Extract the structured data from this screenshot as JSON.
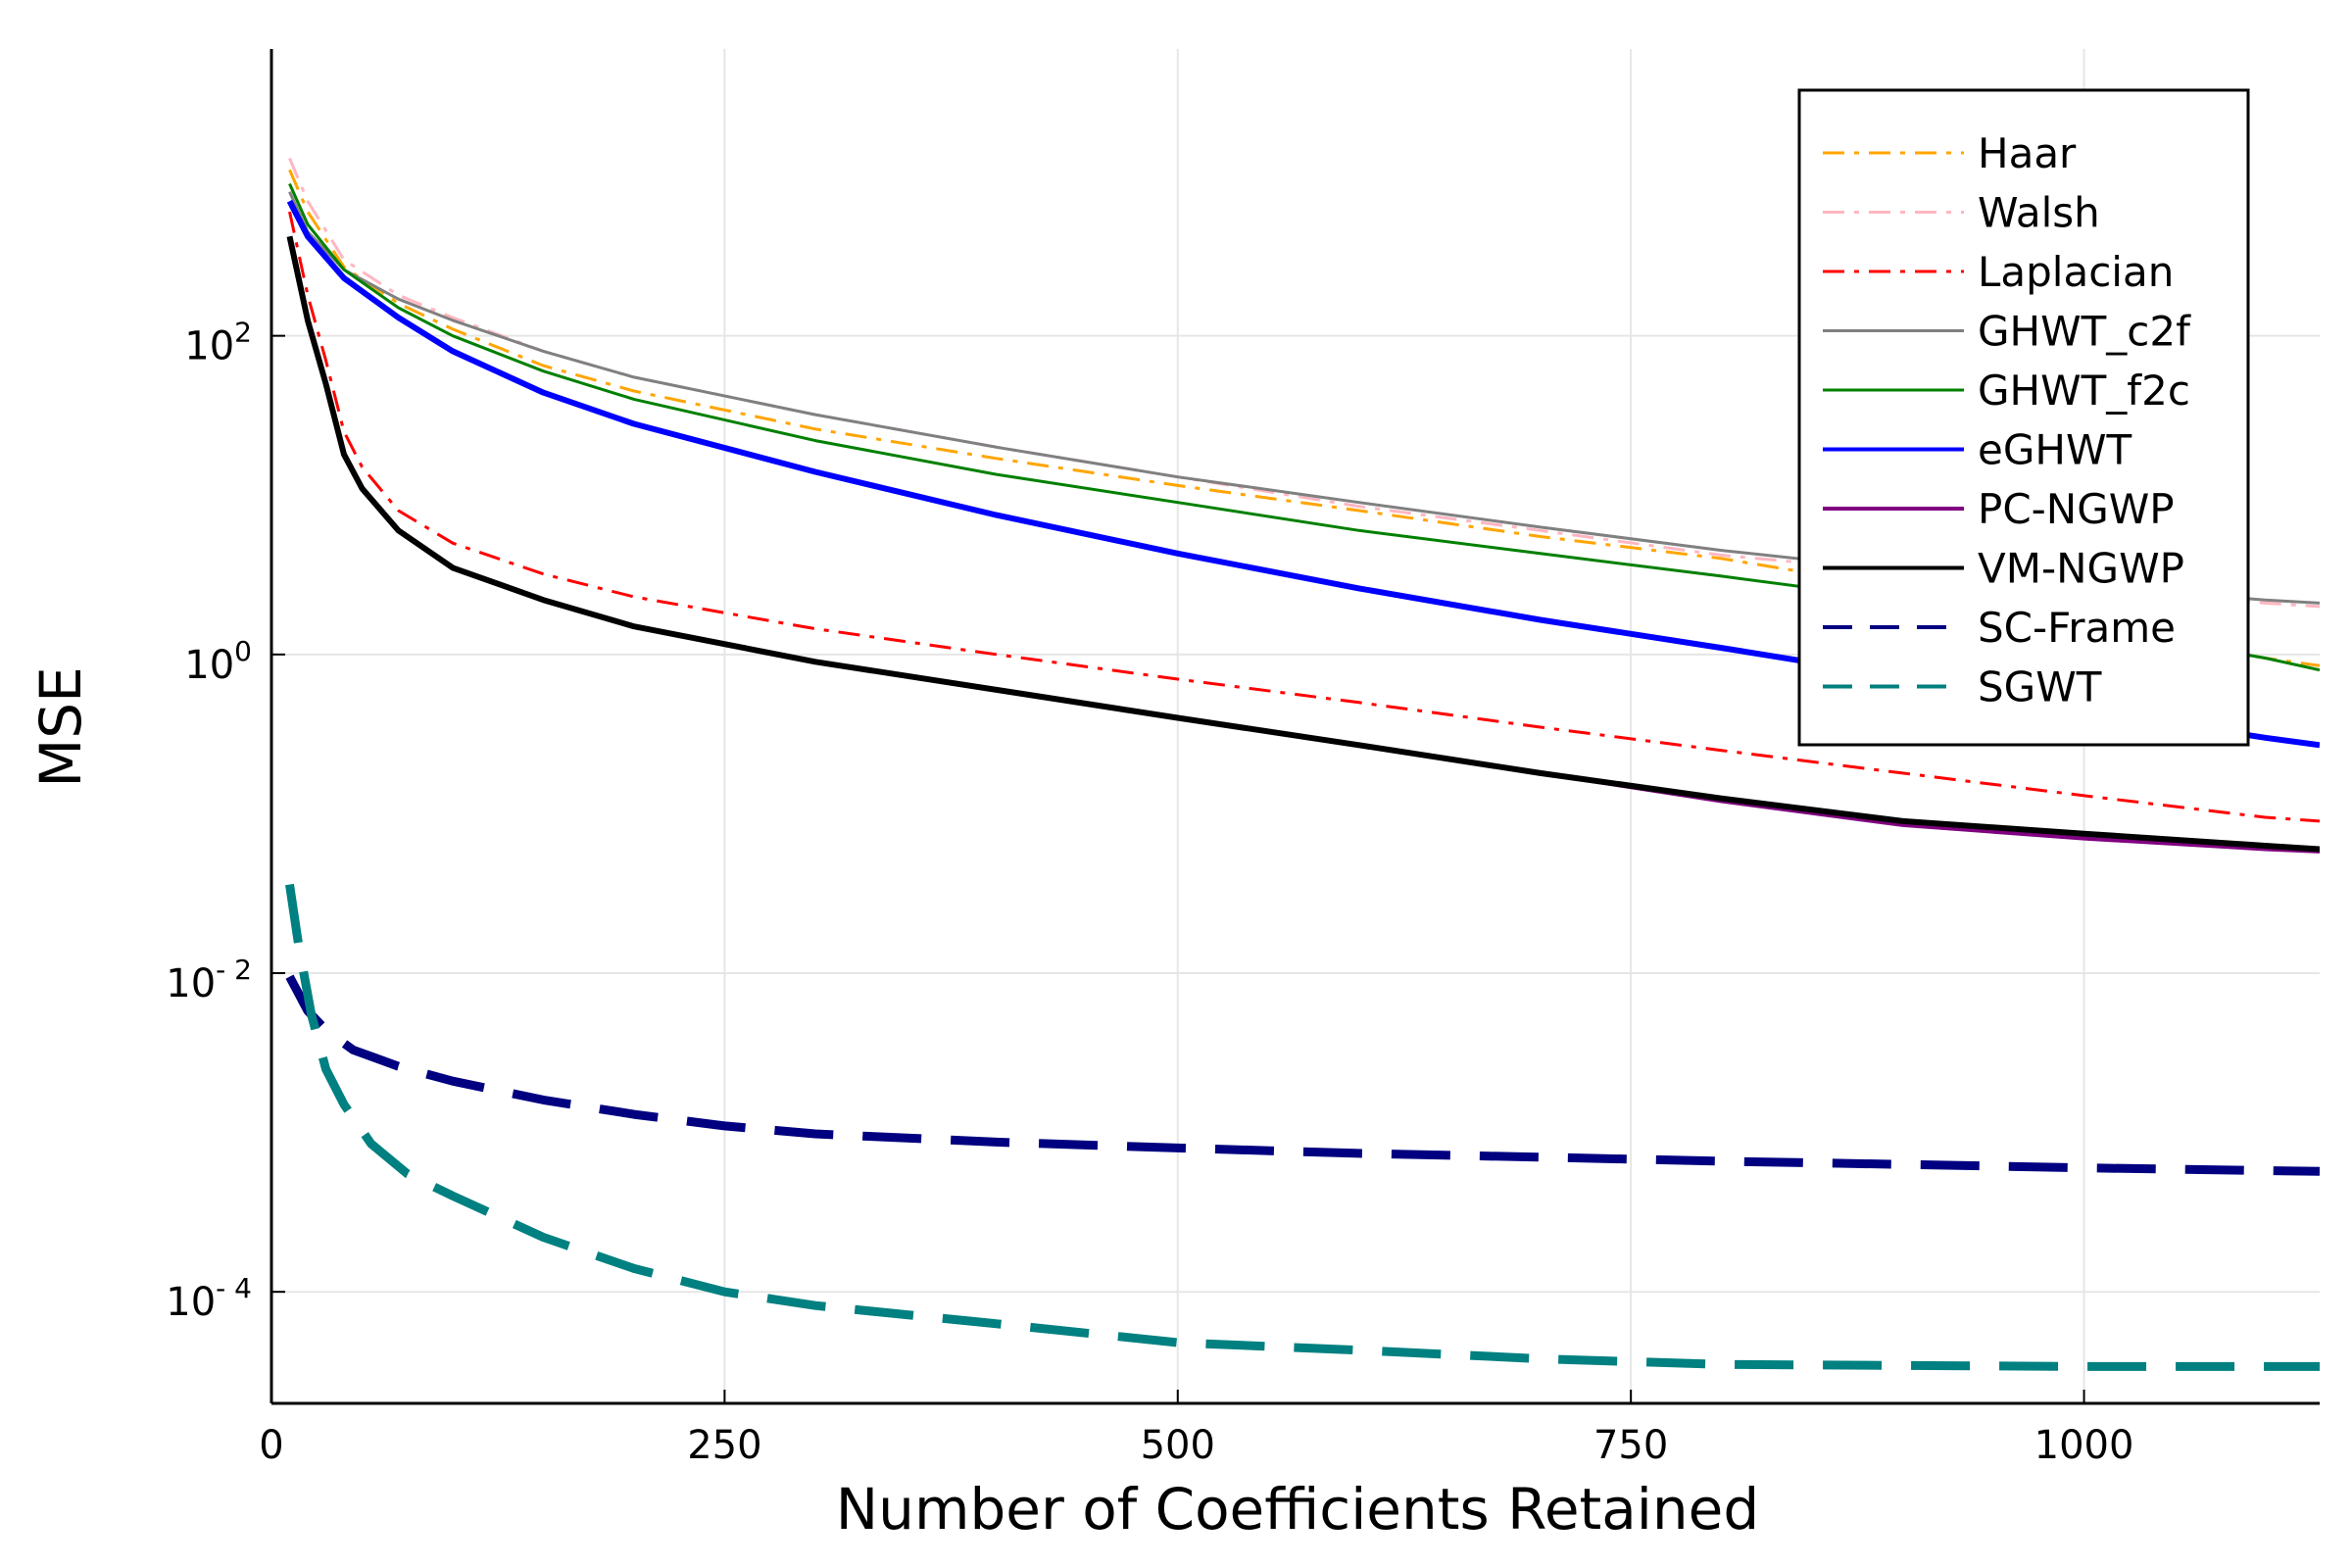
{
  "chart_data": {
    "type": "line",
    "title": "",
    "xlabel": "Number of Coefficients Retained",
    "ylabel": "MSE",
    "xlim": [
      0,
      1130
    ],
    "ylim_log10": [
      -4.7,
      3.8
    ],
    "log_y": true,
    "grid": true,
    "legend_position": "top-right",
    "x_ticks": [
      {
        "value": 0,
        "label": "0"
      },
      {
        "value": 250,
        "label": "250"
      },
      {
        "value": 500,
        "label": "500"
      },
      {
        "value": 750,
        "label": "750"
      },
      {
        "value": 1000,
        "label": "1000"
      }
    ],
    "y_ticks": [
      {
        "exp": 2,
        "base": "10",
        "sup": "2"
      },
      {
        "exp": 0,
        "base": "10",
        "sup": "0"
      },
      {
        "exp": -2,
        "base": "10",
        "sup": "- 2"
      },
      {
        "exp": -4,
        "base": "10",
        "sup": "- 4"
      }
    ],
    "series": [
      {
        "name": "Haar",
        "color": "#ffa500",
        "style": "dashdot",
        "width": 3,
        "points": [
          [
            10,
            1100
          ],
          [
            20,
            600
          ],
          [
            40,
            270
          ],
          [
            70,
            160
          ],
          [
            100,
            110
          ],
          [
            150,
            65
          ],
          [
            200,
            45
          ],
          [
            300,
            26
          ],
          [
            400,
            17
          ],
          [
            500,
            11.5
          ],
          [
            600,
            8
          ],
          [
            700,
            5.5
          ],
          [
            800,
            4
          ],
          [
            900,
            2.6
          ],
          [
            1000,
            1.5
          ],
          [
            1100,
            0.95
          ],
          [
            1130,
            0.85
          ]
        ]
      },
      {
        "name": "Walsh",
        "color": "#ffb6c1",
        "style": "dashdot",
        "width": 3,
        "points": [
          [
            10,
            1300
          ],
          [
            20,
            700
          ],
          [
            40,
            300
          ],
          [
            70,
            180
          ],
          [
            100,
            130
          ],
          [
            150,
            80
          ],
          [
            200,
            55
          ],
          [
            300,
            32
          ],
          [
            400,
            20
          ],
          [
            500,
            13
          ],
          [
            600,
            8.5
          ],
          [
            700,
            6
          ],
          [
            800,
            4.2
          ],
          [
            900,
            3.3
          ],
          [
            1000,
            2.6
          ],
          [
            1100,
            2.1
          ],
          [
            1130,
            2
          ]
        ]
      },
      {
        "name": "Laplacian",
        "color": "#ff0000",
        "style": "dashdot",
        "width": 3,
        "points": [
          [
            10,
            600
          ],
          [
            20,
            180
          ],
          [
            30,
            70
          ],
          [
            40,
            25
          ],
          [
            50,
            15
          ],
          [
            70,
            8
          ],
          [
            100,
            5
          ],
          [
            150,
            3.2
          ],
          [
            200,
            2.3
          ],
          [
            300,
            1.45
          ],
          [
            400,
            1
          ],
          [
            500,
            0.7
          ],
          [
            600,
            0.5
          ],
          [
            700,
            0.35
          ],
          [
            800,
            0.25
          ],
          [
            900,
            0.18
          ],
          [
            1000,
            0.13
          ],
          [
            1100,
            0.095
          ],
          [
            1130,
            0.09
          ]
        ]
      },
      {
        "name": "GHWT_c2f",
        "color": "#808080",
        "style": "solid",
        "width": 3,
        "points": [
          [
            10,
            800
          ],
          [
            20,
            450
          ],
          [
            40,
            260
          ],
          [
            70,
            170
          ],
          [
            100,
            125
          ],
          [
            150,
            80
          ],
          [
            200,
            55
          ],
          [
            300,
            32
          ],
          [
            400,
            20
          ],
          [
            500,
            13
          ],
          [
            600,
            9
          ],
          [
            700,
            6.3
          ],
          [
            800,
            4.5
          ],
          [
            900,
            3.4
          ],
          [
            1000,
            2.7
          ],
          [
            1100,
            2.2
          ],
          [
            1130,
            2.1
          ]
        ]
      },
      {
        "name": "GHWT_f2c",
        "color": "#008000",
        "style": "solid",
        "width": 3,
        "points": [
          [
            10,
            900
          ],
          [
            20,
            500
          ],
          [
            40,
            260
          ],
          [
            70,
            150
          ],
          [
            100,
            100
          ],
          [
            150,
            60
          ],
          [
            200,
            40
          ],
          [
            300,
            22
          ],
          [
            400,
            13.5
          ],
          [
            500,
            9
          ],
          [
            600,
            6
          ],
          [
            700,
            4.3
          ],
          [
            800,
            3.1
          ],
          [
            900,
            2.2
          ],
          [
            1000,
            1.5
          ],
          [
            1100,
            0.95
          ],
          [
            1130,
            0.8
          ]
        ]
      },
      {
        "name": "eGHWT",
        "color": "#0000ff",
        "style": "solid",
        "width": 6,
        "points": [
          [
            10,
            700
          ],
          [
            20,
            420
          ],
          [
            40,
            230
          ],
          [
            70,
            130
          ],
          [
            100,
            80
          ],
          [
            150,
            44
          ],
          [
            200,
            28
          ],
          [
            300,
            14
          ],
          [
            400,
            7.5
          ],
          [
            500,
            4.3
          ],
          [
            600,
            2.6
          ],
          [
            700,
            1.65
          ],
          [
            800,
            1.1
          ],
          [
            900,
            0.72
          ],
          [
            1000,
            0.45
          ],
          [
            1100,
            0.3
          ],
          [
            1130,
            0.27
          ]
        ]
      },
      {
        "name": "PC-NGWP",
        "color": "#800080",
        "style": "solid",
        "width": 4,
        "points": [
          [
            10,
            400
          ],
          [
            20,
            120
          ],
          [
            30,
            50
          ],
          [
            40,
            18
          ],
          [
            50,
            11
          ],
          [
            70,
            6
          ],
          [
            100,
            3.5
          ],
          [
            150,
            2.2
          ],
          [
            200,
            1.5
          ],
          [
            300,
            0.9
          ],
          [
            400,
            0.6
          ],
          [
            500,
            0.4
          ],
          [
            600,
            0.27
          ],
          [
            700,
            0.18
          ],
          [
            800,
            0.12
          ],
          [
            900,
            0.085
          ],
          [
            1000,
            0.07
          ],
          [
            1100,
            0.06
          ],
          [
            1130,
            0.058
          ]
        ]
      },
      {
        "name": "VM-NGWP",
        "color": "#000000",
        "style": "solid",
        "width": 6,
        "points": [
          [
            10,
            420
          ],
          [
            20,
            125
          ],
          [
            30,
            50
          ],
          [
            40,
            18
          ],
          [
            50,
            11
          ],
          [
            70,
            6
          ],
          [
            100,
            3.5
          ],
          [
            150,
            2.2
          ],
          [
            200,
            1.5
          ],
          [
            300,
            0.9
          ],
          [
            400,
            0.6
          ],
          [
            500,
            0.4
          ],
          [
            600,
            0.27
          ],
          [
            700,
            0.18
          ],
          [
            800,
            0.125
          ],
          [
            900,
            0.09
          ],
          [
            1000,
            0.075
          ],
          [
            1100,
            0.063
          ],
          [
            1130,
            0.06
          ]
        ]
      },
      {
        "name": "SC-Frame",
        "color": "#000080",
        "style": "dash",
        "width": 9,
        "points": [
          [
            10,
            0.0095
          ],
          [
            20,
            0.0058
          ],
          [
            30,
            0.0044
          ],
          [
            45,
            0.0033
          ],
          [
            70,
            0.0026
          ],
          [
            100,
            0.0021
          ],
          [
            150,
            0.0016
          ],
          [
            200,
            0.0013
          ],
          [
            250,
            0.0011
          ],
          [
            300,
            0.00098
          ],
          [
            400,
            0.00087
          ],
          [
            500,
            0.0008
          ],
          [
            600,
            0.00074
          ],
          [
            700,
            0.0007
          ],
          [
            800,
            0.00066
          ],
          [
            900,
            0.00063
          ],
          [
            1000,
            0.0006
          ],
          [
            1130,
            0.00057
          ]
        ]
      },
      {
        "name": "SGWT",
        "color": "#008080",
        "style": "dash",
        "width": 9,
        "points": [
          [
            10,
            0.036
          ],
          [
            15,
            0.015
          ],
          [
            22,
            0.0055
          ],
          [
            30,
            0.0025
          ],
          [
            40,
            0.0015
          ],
          [
            55,
            0.00085
          ],
          [
            75,
            0.00055
          ],
          [
            100,
            0.0004
          ],
          [
            150,
            0.00022
          ],
          [
            200,
            0.00014
          ],
          [
            250,
            0.0001
          ],
          [
            300,
            8.2e-05
          ],
          [
            400,
            6.3e-05
          ],
          [
            500,
            4.8e-05
          ],
          [
            600,
            4.3e-05
          ],
          [
            700,
            3.8e-05
          ],
          [
            800,
            3.5e-05
          ],
          [
            1000,
            3.4e-05
          ],
          [
            1130,
            3.4e-05
          ]
        ]
      }
    ]
  }
}
